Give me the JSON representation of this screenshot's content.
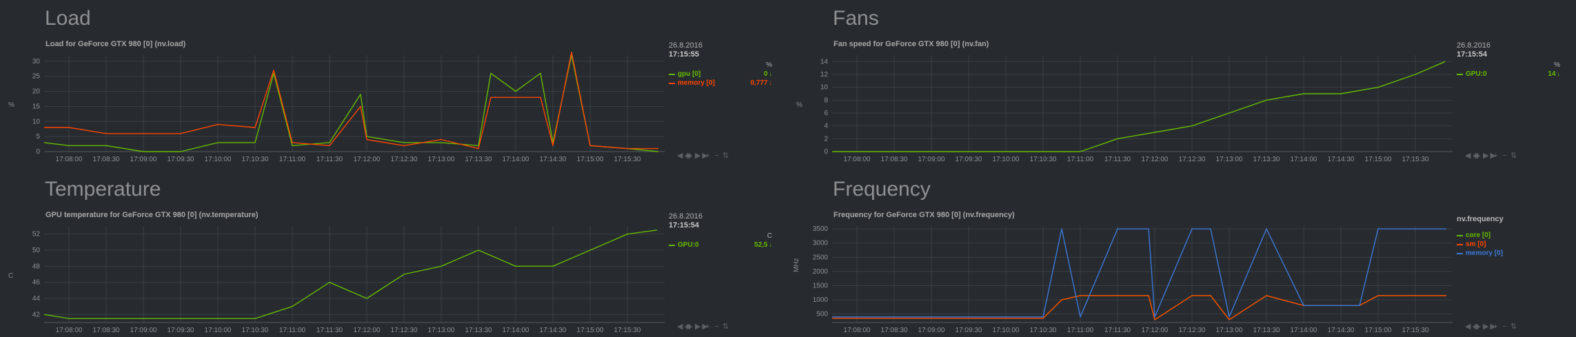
{
  "sections": {
    "load": "Load",
    "fans": "Fans",
    "temperature": "Temperature",
    "frequency": "Frequency"
  },
  "charts": {
    "load": {
      "title": "Load for GeForce GTX 980 [0] (nv.load)",
      "ylabel": "%",
      "date": "26.8.2016",
      "time": "17:15:55",
      "units": "%",
      "series": [
        {
          "name": "gpu [0]",
          "value": "0",
          "color": "#66bb00"
        },
        {
          "name": "memory [0]",
          "value": "0,777",
          "color": "#ff4500"
        }
      ]
    },
    "fans": {
      "title": "Fan speed for GeForce GTX 980 [0] (nv.fan)",
      "ylabel": "%",
      "date": "26.8.2016",
      "time": "17:15:54",
      "units": "%",
      "series": [
        {
          "name": "GPU:0",
          "value": "14",
          "color": "#66bb00"
        }
      ]
    },
    "temperature": {
      "title": "GPU temperature for GeForce GTX 980 [0] (nv.temperature)",
      "ylabel": "C",
      "date": "26.8.2016",
      "time": "17:15:54",
      "units": "C",
      "series": [
        {
          "name": "GPU:0",
          "value": "52,5",
          "color": "#66bb00"
        }
      ]
    },
    "frequency": {
      "title": "Frequency for GeForce GTX 980 [0] (nv.frequency)",
      "ylabel": "MHz",
      "legend_header": "nv.frequency",
      "series": [
        {
          "name": "core [0]",
          "color": "#66bb00"
        },
        {
          "name": "sm [0]",
          "color": "#ff4500"
        },
        {
          "name": "memory [0]",
          "color": "#3c78d8"
        }
      ]
    }
  },
  "toolbar_icons": [
    "rewind-icon",
    "play-icon",
    "forward-icon",
    "zoom-in-icon",
    "zoom-out-icon",
    "resize-icon"
  ],
  "toolbar_glyphs": [
    "◀◀",
    "▶",
    "▶▶",
    "+",
    "−",
    "⇅"
  ],
  "chart_data": [
    {
      "type": "line",
      "id": "load",
      "ylim": [
        0,
        32
      ],
      "yticks": [
        0,
        5,
        10,
        15,
        20,
        25,
        30
      ],
      "x": [
        "17:07:40",
        "17:08:00",
        "17:08:30",
        "17:09:00",
        "17:09:30",
        "17:10:00",
        "17:10:30",
        "17:10:45",
        "17:11:00",
        "17:11:30",
        "17:11:55",
        "17:12:00",
        "17:12:30",
        "17:13:00",
        "17:13:30",
        "17:13:40",
        "17:14:00",
        "17:14:20",
        "17:14:30",
        "17:14:45",
        "17:15:00",
        "17:15:30",
        "17:15:55"
      ],
      "xlabels": [
        "17:08:00",
        "17:08:30",
        "17:09:00",
        "17:09:30",
        "17:10:00",
        "17:10:30",
        "17:11:00",
        "17:11:30",
        "17:12:00",
        "17:12:30",
        "17:13:00",
        "17:13:30",
        "17:14:00",
        "17:14:30",
        "17:15:00",
        "17:15:30"
      ],
      "series": [
        {
          "name": "gpu [0]",
          "color": "#66bb00",
          "values": [
            3,
            2,
            2,
            0,
            0,
            3,
            3,
            26,
            2,
            3,
            19,
            5,
            3,
            3,
            2,
            26,
            20,
            26,
            3,
            32,
            2,
            1,
            0
          ]
        },
        {
          "name": "memory [0]",
          "color": "#ff4500",
          "values": [
            8,
            8,
            6,
            6,
            6,
            9,
            8,
            27,
            3,
            2,
            15,
            4,
            2,
            4,
            1,
            18,
            18,
            18,
            2,
            33,
            2,
            1,
            1
          ]
        }
      ],
      "grid": true
    },
    {
      "type": "line",
      "id": "fans",
      "ylim": [
        0,
        15
      ],
      "yticks": [
        0,
        2,
        4,
        6,
        8,
        10,
        12,
        14
      ],
      "x": [
        "17:07:40",
        "17:11:00",
        "17:11:30",
        "17:12:00",
        "17:12:30",
        "17:13:00",
        "17:13:30",
        "17:14:00",
        "17:14:30",
        "17:15:00",
        "17:15:30",
        "17:15:54"
      ],
      "xlabels": [
        "17:08:00",
        "17:08:30",
        "17:09:00",
        "17:09:30",
        "17:10:00",
        "17:10:30",
        "17:11:00",
        "17:11:30",
        "17:12:00",
        "17:12:30",
        "17:13:00",
        "17:13:30",
        "17:14:00",
        "17:14:30",
        "17:15:00",
        "17:15:30"
      ],
      "series": [
        {
          "name": "GPU:0",
          "color": "#66bb00",
          "values": [
            0,
            0,
            2,
            3,
            4,
            6,
            8,
            9,
            9,
            10,
            12,
            14
          ]
        }
      ],
      "grid": true
    },
    {
      "type": "line",
      "id": "temperature",
      "ylim": [
        41,
        53
      ],
      "yticks": [
        42,
        44,
        46,
        48,
        50,
        52
      ],
      "x": [
        "17:07:40",
        "17:08:00",
        "17:09:00",
        "17:10:00",
        "17:10:30",
        "17:11:00",
        "17:11:30",
        "17:12:00",
        "17:12:30",
        "17:13:00",
        "17:13:30",
        "17:14:00",
        "17:14:30",
        "17:15:00",
        "17:15:30",
        "17:15:54"
      ],
      "xlabels": [
        "17:08:00",
        "17:08:30",
        "17:09:00",
        "17:09:30",
        "17:10:00",
        "17:10:30",
        "17:11:00",
        "17:11:30",
        "17:12:00",
        "17:12:30",
        "17:13:00",
        "17:13:30",
        "17:14:00",
        "17:14:30",
        "17:15:00",
        "17:15:30"
      ],
      "series": [
        {
          "name": "GPU:0",
          "color": "#66bb00",
          "values": [
            42,
            41.5,
            41.5,
            41.5,
            41.5,
            43,
            46,
            44,
            47,
            48,
            50,
            48,
            48,
            50,
            52,
            52.5
          ]
        }
      ],
      "grid": true
    },
    {
      "type": "line",
      "id": "frequency",
      "ylim": [
        200,
        3600
      ],
      "yticks": [
        500,
        1000,
        1500,
        2000,
        2500,
        3000,
        3500
      ],
      "x": [
        "17:07:40",
        "17:10:30",
        "17:10:45",
        "17:11:00",
        "17:11:30",
        "17:11:55",
        "17:12:00",
        "17:12:30",
        "17:12:45",
        "17:13:00",
        "17:13:30",
        "17:14:00",
        "17:14:30",
        "17:14:45",
        "17:15:00",
        "17:15:30",
        "17:15:55"
      ],
      "xlabels": [
        "17:08:00",
        "17:08:30",
        "17:09:00",
        "17:09:30",
        "17:10:00",
        "17:10:30",
        "17:11:00",
        "17:11:30",
        "17:12:00",
        "17:12:30",
        "17:13:00",
        "17:13:30",
        "17:14:00",
        "17:14:30",
        "17:15:00",
        "17:15:30"
      ],
      "series": [
        {
          "name": "core [0]",
          "color": "#66bb00",
          "values": [
            350,
            350,
            1000,
            1150,
            1150,
            1150,
            300,
            1150,
            1150,
            300,
            1150,
            800,
            800,
            800,
            1150,
            1150,
            1150
          ]
        },
        {
          "name": "sm [0]",
          "color": "#ff4500",
          "values": [
            350,
            350,
            1000,
            1150,
            1150,
            1150,
            300,
            1150,
            1150,
            300,
            1150,
            800,
            800,
            800,
            1150,
            1150,
            1150
          ]
        },
        {
          "name": "memory [0]",
          "color": "#3c78d8",
          "values": [
            400,
            400,
            3500,
            400,
            3500,
            3500,
            400,
            3500,
            3500,
            400,
            3500,
            800,
            800,
            800,
            3500,
            3500,
            3500
          ]
        }
      ],
      "grid": true
    }
  ]
}
